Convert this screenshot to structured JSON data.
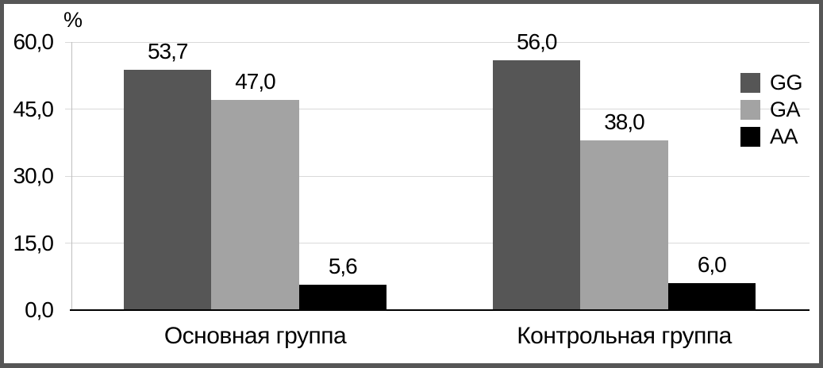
{
  "figure": {
    "frame_color": "#565656",
    "background_color": "#ffffff"
  },
  "chart_data": {
    "type": "bar",
    "title": "",
    "xlabel": "",
    "ylabel": "%",
    "categories": [
      "Основная группа",
      "Контрольная группа"
    ],
    "series": [
      {
        "name": "GG",
        "color": "#565656",
        "values": [
          53.7,
          56.0
        ],
        "value_labels": [
          "53,7",
          "56,0"
        ]
      },
      {
        "name": "GA",
        "color": "#a3a3a3",
        "values": [
          47.0,
          38.0
        ],
        "value_labels": [
          "47,0",
          "38,0"
        ]
      },
      {
        "name": "AA",
        "color": "#000000",
        "values": [
          5.6,
          6.0
        ],
        "value_labels": [
          "5,6",
          "6,0"
        ]
      }
    ],
    "y_axis": {
      "min": 0,
      "max": 60,
      "tick_step": 15,
      "tick_labels": [
        "0,0",
        "15,0",
        "30,0",
        "45,0",
        "60,0"
      ]
    },
    "grid": true,
    "gridline_color": "#d9d9d9",
    "axis_line_color": "#bfbfbf",
    "baseline_color": "#000000",
    "legend": {
      "position": "right",
      "entries": [
        "GG",
        "GA",
        "AA"
      ]
    }
  }
}
